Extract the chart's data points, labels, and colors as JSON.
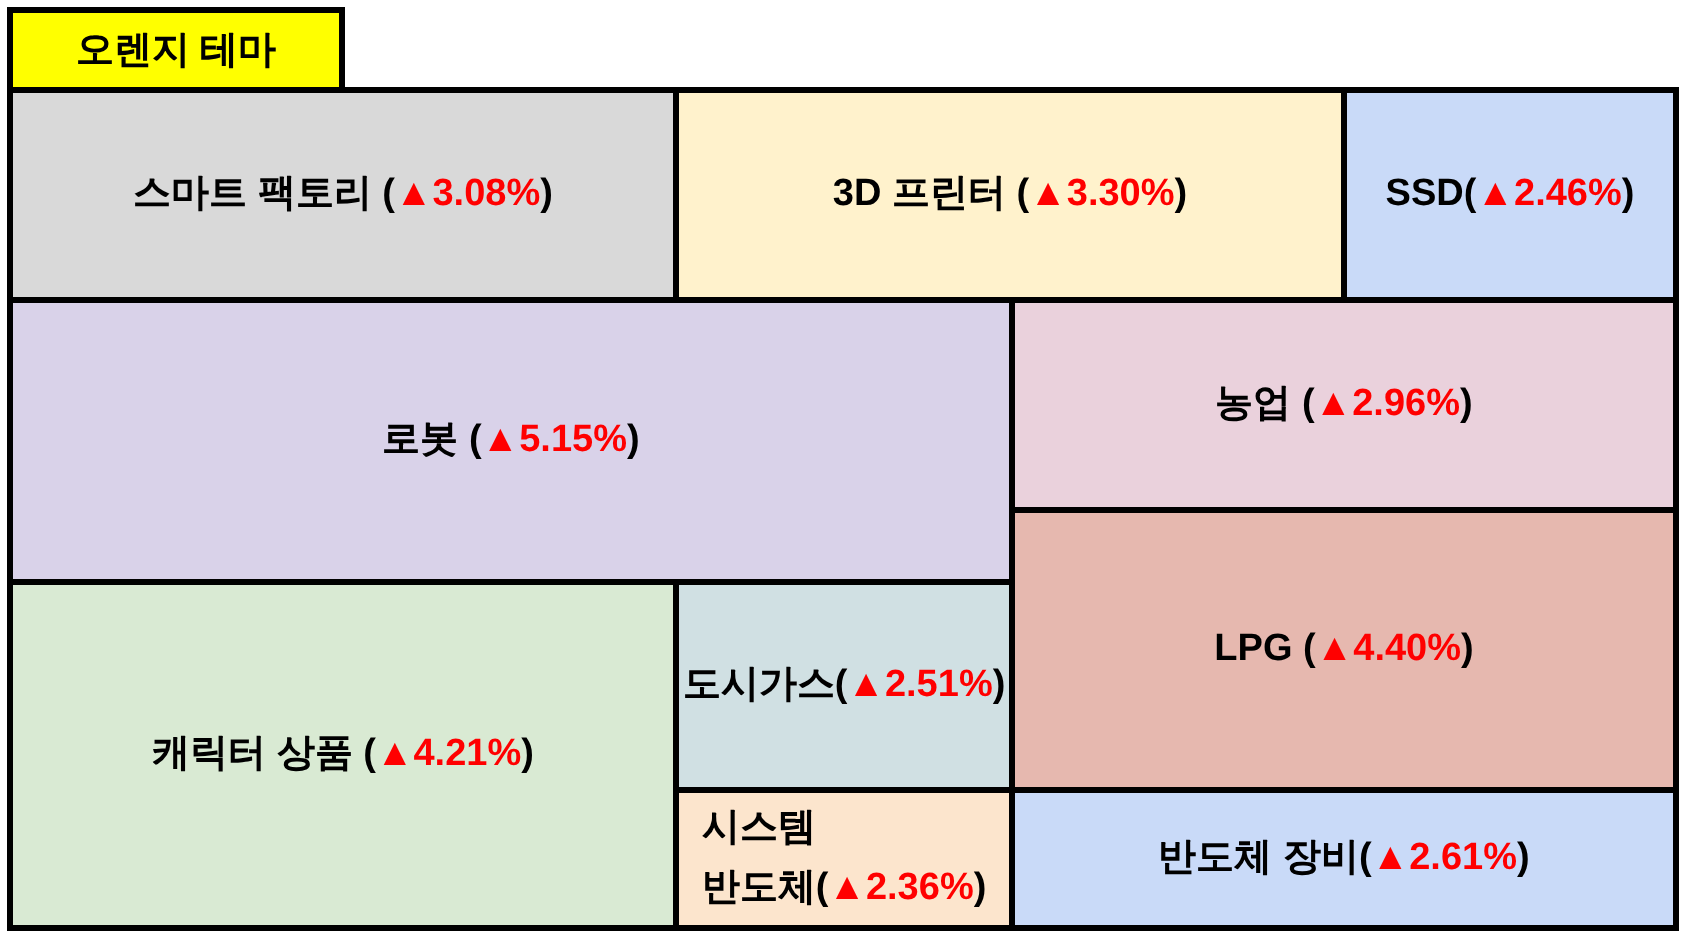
{
  "chart_data": {
    "type": "other",
    "title": "오렌지 테마",
    "categories": [
      "스마트 팩토리",
      "3D 프린터",
      "SSD",
      "로봇",
      "농업",
      "LPG",
      "캐릭터 상품",
      "도시가스",
      "시스템 반도체",
      "반도체 장비"
    ],
    "values": [
      3.08,
      3.3,
      2.46,
      5.15,
      2.96,
      4.4,
      4.21,
      2.51,
      2.36,
      2.61
    ],
    "value_labels": [
      "(▲3.08%)",
      "(▲3.30%)",
      "(▲2.46%)",
      "(▲5.15%)",
      "(▲2.96%)",
      "(▲4.40%)",
      "(▲4.21%)",
      "(▲2.51%)",
      "(▲2.36%)",
      "(▲2.61%)"
    ],
    "colors": [
      "#d9d9d9",
      "#fff2cc",
      "#c9daf8",
      "#d9d2e9",
      "#ead1dc",
      "#e6b8af",
      "#d9ead3",
      "#d0e0e3",
      "#fce5cd",
      "#c9daf8"
    ]
  }
}
